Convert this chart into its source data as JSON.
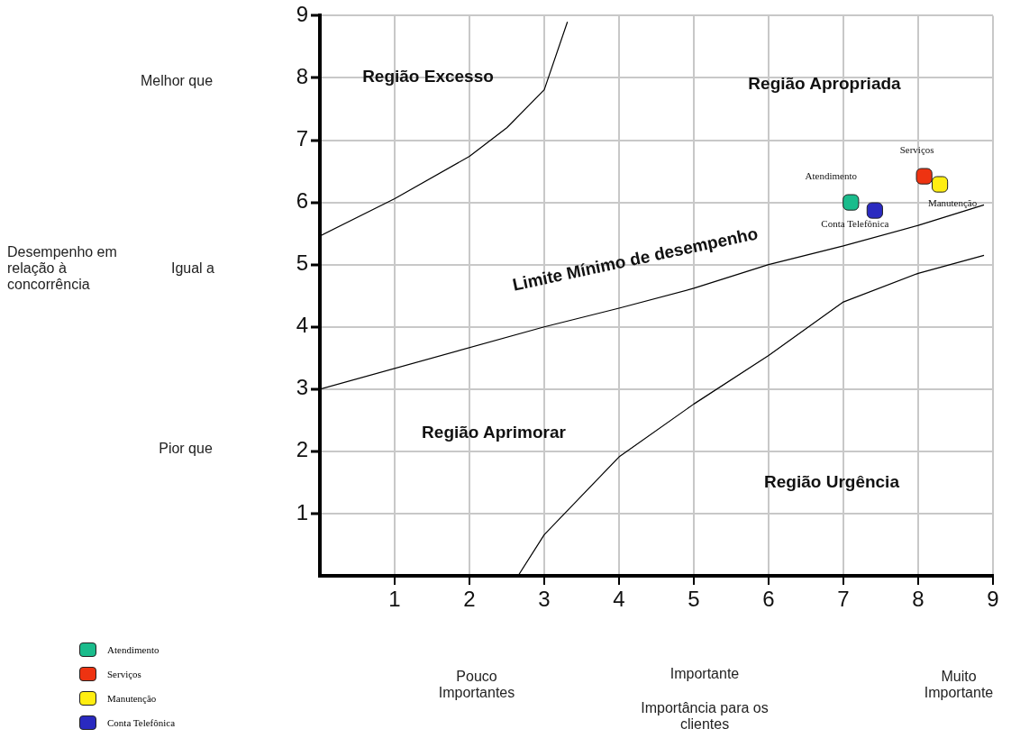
{
  "chart_data": {
    "type": "scatter",
    "xlim": [
      0,
      9
    ],
    "ylim": [
      0,
      9
    ],
    "xticks": [
      1,
      2,
      3,
      4,
      5,
      6,
      7,
      8,
      9
    ],
    "yticks": [
      1,
      2,
      3,
      4,
      5,
      6,
      7,
      8,
      9
    ],
    "grid": true,
    "legend": "bottom left",
    "marker": "square",
    "series": [
      {
        "type": "line",
        "color": "#000000",
        "marker": "none",
        "x": [
          0,
          1,
          2,
          2.5,
          3,
          3.31
        ],
        "values": [
          5.46,
          6.06,
          6.74,
          7.2,
          7.81,
          8.9
        ]
      },
      {
        "type": "line",
        "color": "#000000",
        "marker": "none",
        "x": [
          0,
          3,
          4,
          5,
          6,
          7,
          8,
          8.88
        ],
        "values": [
          3.0,
          4.0,
          4.3,
          4.62,
          5.0,
          5.3,
          5.63,
          5.96
        ]
      },
      {
        "type": "line",
        "color": "#000000",
        "marker": "none",
        "x": [
          2.65,
          3,
          4,
          5,
          6,
          7,
          8,
          8.88
        ],
        "values": [
          0,
          0.66,
          1.91,
          2.76,
          3.54,
          4.4,
          4.86,
          5.15
        ]
      },
      {
        "name": "Atendimento",
        "color": "#1abc8c",
        "x": [
          7.1
        ],
        "values": [
          6.0
        ]
      },
      {
        "name": "Serviços",
        "color": "#ee3311",
        "x": [
          8.08
        ],
        "values": [
          6.42
        ]
      },
      {
        "name": "Manutenção",
        "color": "#ffee11",
        "x": [
          8.29
        ],
        "values": [
          6.29
        ]
      },
      {
        "name": "Conta Telefônica",
        "color": "#2a2ac0",
        "x": [
          7.42
        ],
        "values": [
          5.87
        ]
      }
    ],
    "annotations": [
      "Melhor que",
      "Igual a",
      "Pior que",
      "Pouco Importantes",
      "Importante",
      "Muito Importante",
      "Região Excesso",
      "Região Apropriada",
      "Limite Mínimo de desempenho",
      "Região Aprimorar",
      "Região Urgência",
      "Desempenho em relação à concorrência",
      "Importância para os clientes"
    ]
  }
}
